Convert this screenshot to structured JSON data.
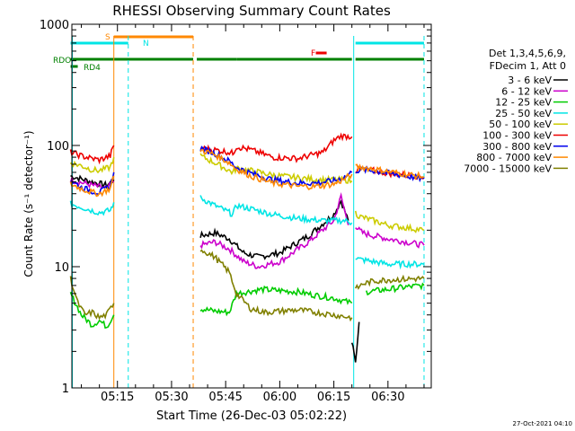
{
  "chart_data": {
    "type": "line",
    "title": "RHESSI Observing Summary Count Rates",
    "xlabel": "Start Time (26-Dec-03 05:02:22)",
    "ylabel": "Count Rate (s⁻¹ detector⁻¹)",
    "yscale": "log",
    "ylim": [
      1,
      1000
    ],
    "xlim": [
      "05:02:22",
      "06:42:00"
    ],
    "x_ticks": [
      "05:15",
      "05:30",
      "05:45",
      "06:00",
      "06:15",
      "06:30"
    ],
    "y_ticks": [
      "1",
      "10",
      "100",
      "1000"
    ],
    "grid": false,
    "legend": {
      "placement": "right",
      "header": [
        "Det 1,3,4,5,6,9,",
        "FDecim 1, Att 0"
      ]
    },
    "series": [
      {
        "name": "3 - 6 keV",
        "color": "#000000",
        "segments": [
          {
            "x": [
              "05:02",
              "05:08",
              "05:12",
              "05:14"
            ],
            "y": [
              56,
              50,
              47,
              52
            ]
          },
          {
            "x": [
              "05:38",
              "05:42",
              "05:46",
              "05:50",
              "05:54",
              "06:00",
              "06:08",
              "06:15",
              "06:17",
              "06:19"
            ],
            "y": [
              18,
              19,
              17,
              13,
              12,
              13,
              18,
              27,
              35,
              24
            ]
          },
          {
            "x": [
              "06:20",
              "06:21",
              "06:22"
            ],
            "y": [
              2.4,
              1.6,
              3.5
            ]
          }
        ]
      },
      {
        "name": "6 - 12 keV",
        "color": "#cc00cc",
        "segments": [
          {
            "x": [
              "05:02",
              "05:08",
              "05:12",
              "05:14"
            ],
            "y": [
              52,
              47,
              44,
              50
            ]
          },
          {
            "x": [
              "05:38",
              "05:42",
              "05:46",
              "05:50",
              "05:54",
              "06:00",
              "06:08",
              "06:15",
              "06:17",
              "06:19"
            ],
            "y": [
              15,
              16,
              14,
              11,
              10,
              11,
              16,
              24,
              38,
              22
            ]
          },
          {
            "x": [
              "06:21",
              "06:22",
              "06:23",
              "06:26",
              "06:30",
              "06:35",
              "06:40"
            ],
            "y": [
              22,
              20,
              19,
              18,
              17,
              16,
              15
            ]
          }
        ]
      },
      {
        "name": "12 - 25 keV",
        "color": "#00cc00",
        "segments": [
          {
            "x": [
              "05:02",
              "05:05",
              "05:08",
              "05:10",
              "05:12",
              "05:14"
            ],
            "y": [
              6,
              4,
              3.3,
              3.6,
              3.2,
              4
            ]
          },
          {
            "x": [
              "05:38",
              "05:42",
              "05:46",
              "05:48",
              "05:55",
              "06:05",
              "06:10",
              "06:15",
              "06:20"
            ],
            "y": [
              4.5,
              4.3,
              4.2,
              6,
              6.5,
              6.2,
              5.8,
              5.5,
              5
            ]
          },
          {
            "x": [
              "06:24",
              "06:30",
              "06:35",
              "06:40"
            ],
            "y": [
              6.2,
              6.5,
              6.8,
              7
            ]
          }
        ]
      },
      {
        "name": "25 - 50 keV",
        "color": "#00e5e5",
        "segments": [
          {
            "x": [
              "05:02",
              "05:05",
              "05:08",
              "05:10",
              "05:13",
              "05:14"
            ],
            "y": [
              33,
              31,
              29,
              28,
              29,
              34
            ]
          },
          {
            "x": [
              "05:38",
              "05:42",
              "05:46",
              "05:47",
              "05:48",
              "05:52",
              "05:58",
              "06:05",
              "06:12",
              "06:18",
              "06:20"
            ],
            "y": [
              37,
              32,
              28,
              27,
              32,
              30,
              27,
              25,
              24,
              24,
              23
            ]
          },
          {
            "x": [
              "06:21",
              "06:22",
              "06:26",
              "06:30",
              "06:35",
              "06:40"
            ],
            "y": [
              12,
              11.5,
              11,
              10.5,
              10.5,
              10.5
            ]
          }
        ]
      },
      {
        "name": "50 - 100 keV",
        "color": "#cccc00",
        "segments": [
          {
            "x": [
              "05:02",
              "05:05",
              "05:08",
              "05:10",
              "05:13",
              "05:14"
            ],
            "y": [
              72,
              68,
              63,
              62,
              66,
              80
            ]
          },
          {
            "x": [
              "05:38",
              "05:42",
              "05:46",
              "05:47",
              "05:48",
              "05:52",
              "05:58",
              "06:05",
              "06:12",
              "06:18",
              "06:20"
            ],
            "y": [
              82,
              72,
              62,
              60,
              65,
              62,
              57,
              54,
              52,
              52,
              51
            ]
          },
          {
            "x": [
              "06:21",
              "06:22",
              "06:26",
              "06:30",
              "06:35",
              "06:40"
            ],
            "y": [
              28,
              26,
              24,
              22,
              21,
              20
            ]
          }
        ]
      },
      {
        "name": "100 - 300 keV",
        "color": "#ee0000",
        "segments": [
          {
            "x": [
              "05:02",
              "05:05",
              "05:08",
              "05:10",
              "05:13",
              "05:14"
            ],
            "y": [
              88,
              82,
              78,
              76,
              82,
              100
            ]
          },
          {
            "x": [
              "05:38",
              "05:42",
              "05:46",
              "05:47",
              "05:48",
              "05:52",
              "05:58",
              "06:05",
              "06:12",
              "06:15",
              "06:17",
              "06:20"
            ],
            "y": [
              95,
              92,
              88,
              86,
              98,
              92,
              80,
              78,
              88,
              110,
              120,
              118
            ]
          },
          {
            "x": [
              "06:21",
              "06:23",
              "06:26",
              "06:30",
              "06:35",
              "06:40"
            ],
            "y": [
              62,
              64,
              62,
              59,
              57,
              55
            ]
          }
        ]
      },
      {
        "name": "300 - 800 keV",
        "color": "#0000ee",
        "segments": [
          {
            "x": [
              "05:02",
              "05:05",
              "05:08",
              "05:10",
              "05:13",
              "05:14"
            ],
            "y": [
              52,
              45,
              42,
              41,
              46,
              60
            ]
          },
          {
            "x": [
              "05:38",
              "05:42",
              "05:46",
              "05:48",
              "05:52",
              "05:58",
              "06:05",
              "06:10",
              "06:15",
              "06:18",
              "06:20"
            ],
            "y": [
              95,
              86,
              74,
              66,
              59,
              52,
              49,
              49,
              51,
              55,
              60
            ]
          },
          {
            "x": [
              "06:21",
              "06:23",
              "06:26",
              "06:30",
              "06:35",
              "06:40"
            ],
            "y": [
              62,
              63,
              62,
              59,
              56,
              53
            ]
          }
        ]
      },
      {
        "name": "800 - 7000 keV",
        "color": "#ff8800",
        "segments": [
          {
            "x": [
              "05:02",
              "05:05",
              "05:08",
              "05:10",
              "05:13",
              "05:14"
            ],
            "y": [
              48,
              44,
              41,
              40,
              44,
              56
            ]
          },
          {
            "x": [
              "05:38",
              "05:42",
              "05:46",
              "05:48",
              "05:52",
              "05:58",
              "06:05",
              "06:10",
              "06:15",
              "06:18",
              "06:20"
            ],
            "y": [
              92,
              84,
              72,
              64,
              56,
              49,
              46,
              46,
              48,
              53,
              58
            ]
          },
          {
            "x": [
              "06:21",
              "06:23",
              "06:26",
              "06:30",
              "06:35",
              "06:40"
            ],
            "y": [
              66,
              66,
              64,
              61,
              58,
              55
            ]
          }
        ]
      },
      {
        "name": "7000 - 15000 keV",
        "color": "#808000",
        "segments": [
          {
            "x": [
              "05:02",
              "05:04",
              "05:06",
              "05:08",
              "05:10",
              "05:12",
              "05:14"
            ],
            "y": [
              8,
              5,
              4,
              4.2,
              3.8,
              4,
              5
            ]
          },
          {
            "x": [
              "05:38",
              "05:42",
              "05:46",
              "05:48",
              "05:52",
              "05:56",
              "06:00",
              "06:05",
              "06:10",
              "06:15",
              "06:20"
            ],
            "y": [
              14,
              12,
              9,
              6,
              4.5,
              4.2,
              4.3,
              4.4,
              4.2,
              4,
              3.8
            ]
          },
          {
            "x": [
              "06:21",
              "06:23",
              "06:26",
              "06:30",
              "06:35",
              "06:40"
            ],
            "y": [
              6.5,
              7.2,
              7.6,
              7.8,
              7.9,
              8
            ]
          }
        ]
      }
    ],
    "state_bars": [
      {
        "label": "S",
        "color": "#ff8800",
        "segments": [
          [
            "05:14",
            "05:36"
          ]
        ]
      },
      {
        "label": "N",
        "color": "#00e5e5",
        "segments": [
          [
            "05:02",
            "05:18"
          ],
          [
            "06:21",
            "06:40"
          ]
        ]
      },
      {
        "label": "RDO",
        "color": "#008000",
        "segments": [
          [
            "05:02",
            "05:36"
          ],
          [
            "05:37",
            "05:48"
          ],
          [
            "05:48",
            "06:20"
          ],
          [
            "06:21",
            "06:40"
          ]
        ]
      },
      {
        "label": "RD4",
        "color": "#008000",
        "segments": [
          [
            "05:02",
            "05:04"
          ]
        ]
      },
      {
        "label": "F",
        "color": "#ee0000",
        "segments": [
          [
            "06:10",
            "06:13"
          ]
        ]
      }
    ],
    "vertical_markers": [
      {
        "time": "05:02:30",
        "color": "#00e5e5",
        "style": "solid"
      },
      {
        "time": "05:14:00",
        "color": "#ff8800",
        "style": "solid"
      },
      {
        "time": "05:18:00",
        "color": "#00e5e5",
        "style": "dashed"
      },
      {
        "time": "05:36:00",
        "color": "#ff8800",
        "style": "dashed"
      },
      {
        "time": "06:20:30",
        "color": "#00e5e5",
        "style": "solid"
      },
      {
        "time": "06:40:00",
        "color": "#00e5e5",
        "style": "dashed"
      }
    ]
  },
  "footer_timestamp": "27-Oct-2021 04:10"
}
